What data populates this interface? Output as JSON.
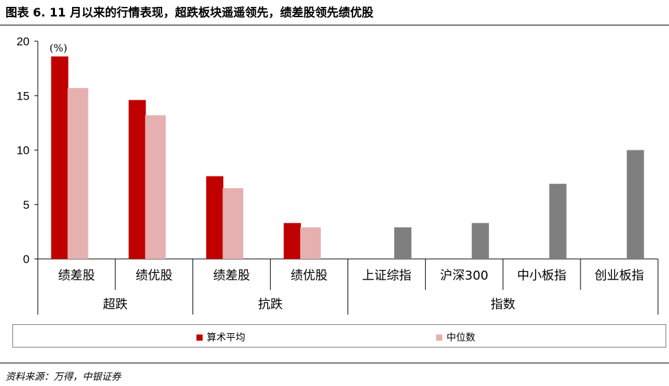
{
  "figure_title": "图表 6. 11 月以来的行情表现，超跌板块遥遥领先，绩差股领先绩优股",
  "source": "资料来源：万得，中银证券",
  "colors": {
    "avg": "#c00000",
    "median": "#e6b0b0",
    "index": "#7f7f7f"
  },
  "chart_data": {
    "type": "bar",
    "unit_label": "(%)",
    "ylim": [
      0,
      20
    ],
    "yticks": [
      "0",
      "5",
      "10",
      "15",
      "20"
    ],
    "grid": false,
    "legend_position": "bottom",
    "categories": [
      "绩差股",
      "绩优股",
      "绩差股",
      "绩优股",
      "上证综指",
      "沪深300",
      "中小板指",
      "创业板指"
    ],
    "groups": [
      {
        "label": "超跌",
        "span": 2
      },
      {
        "label": "抗跌",
        "span": 2
      },
      {
        "label": "指数",
        "span": 4
      }
    ],
    "series": [
      {
        "name": "算术平均",
        "values": [
          18.6,
          14.6,
          7.6,
          3.3,
          null,
          null,
          null,
          null
        ]
      },
      {
        "name": "中位数",
        "values": [
          15.7,
          13.2,
          6.5,
          2.9,
          null,
          null,
          null,
          null
        ]
      },
      {
        "name": "",
        "values": [
          null,
          null,
          null,
          null,
          2.9,
          3.3,
          6.9,
          10.0
        ]
      }
    ]
  }
}
